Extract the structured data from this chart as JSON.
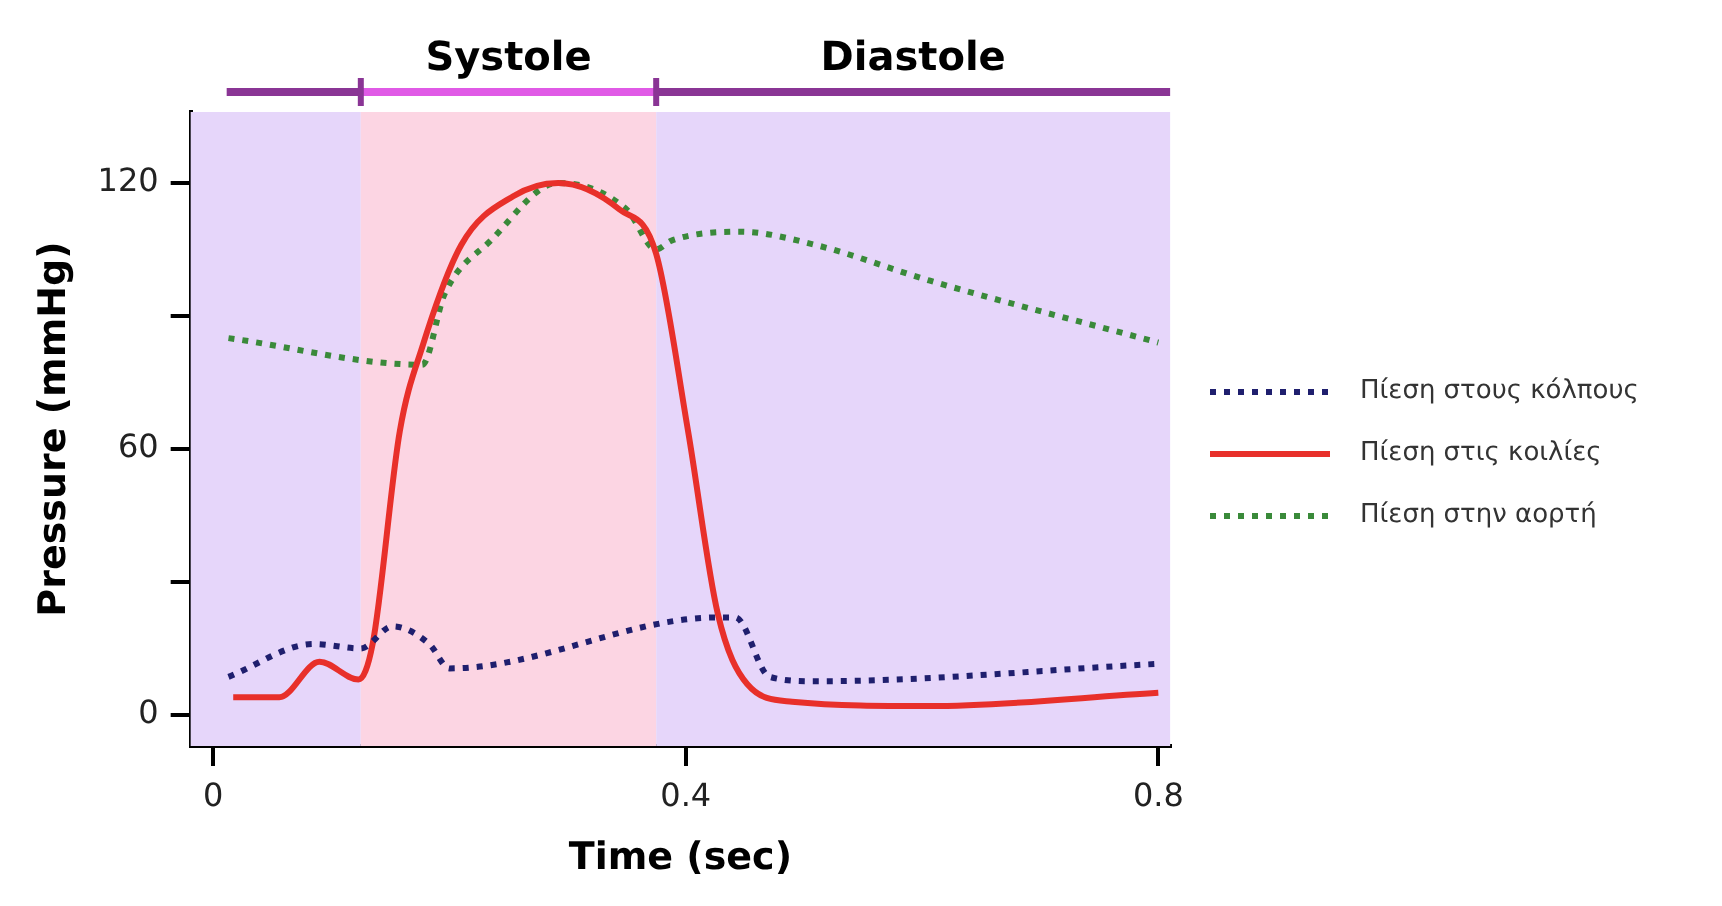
{
  "chart_data": {
    "type": "line",
    "xlabel": "Time (sec)",
    "ylabel": "Pressure (mmHg)",
    "xlim": [
      -0.019,
      0.81
    ],
    "xticks": [
      0,
      0.4,
      0.8
    ],
    "ylim": [
      -7,
      136
    ],
    "yticks": [
      0,
      {
        "value": 30,
        "label": null
      },
      60,
      {
        "value": 90,
        "label": null
      },
      120
    ],
    "legend": "right",
    "marker": "none",
    "bands": [
      {
        "axis": "x",
        "from": -0.019,
        "to": 0.125,
        "color": "#e6d6fa"
      },
      {
        "axis": "x",
        "from": 0.125,
        "to": 0.375,
        "label": "Systole",
        "color": "#fcd5e3"
      },
      {
        "axis": "x",
        "from": 0.375,
        "to": 0.81,
        "label": "Diastole",
        "color": "#e6d6fa"
      }
    ],
    "series": [
      {
        "name": "Πίεση στους κόλπους",
        "color": "#1f1f6e",
        "line_style": "dotted",
        "x": [
          0.013,
          0.085,
          0.125,
          0.152,
          0.183,
          0.2,
          0.427,
          0.442,
          0.471,
          0.51,
          0.798
        ],
        "values": [
          8.6,
          16,
          15,
          20,
          16,
          10.5,
          22,
          22,
          8.6,
          7.6,
          11.5
        ]
      },
      {
        "name": "Πίεση στις κοιλίες",
        "color": "#e8302a",
        "line_style": "solid",
        "x": [
          0.017,
          0.056,
          0.09,
          0.123,
          0.135,
          0.158,
          0.177,
          0.21,
          0.254,
          0.292,
          0.344,
          0.375,
          0.402,
          0.427,
          0.452,
          0.49,
          0.606,
          0.8
        ],
        "values": [
          4,
          4,
          12,
          8,
          16,
          64,
          83,
          106,
          117,
          120,
          114,
          104,
          64,
          23,
          7,
          3,
          2,
          5
        ]
      },
      {
        "name": "Πίεση στην αορτή",
        "color": "#3a8a3a",
        "line_style": "dotted",
        "x": [
          0.013,
          0.177,
          0.196,
          0.235,
          0.292,
          0.35,
          0.375,
          0.388,
          0.446,
          0.51,
          0.606,
          0.8
        ],
        "values": [
          85,
          79,
          95,
          107,
          120,
          114,
          105,
          107,
          109,
          106,
          98,
          84
        ]
      }
    ]
  }
}
